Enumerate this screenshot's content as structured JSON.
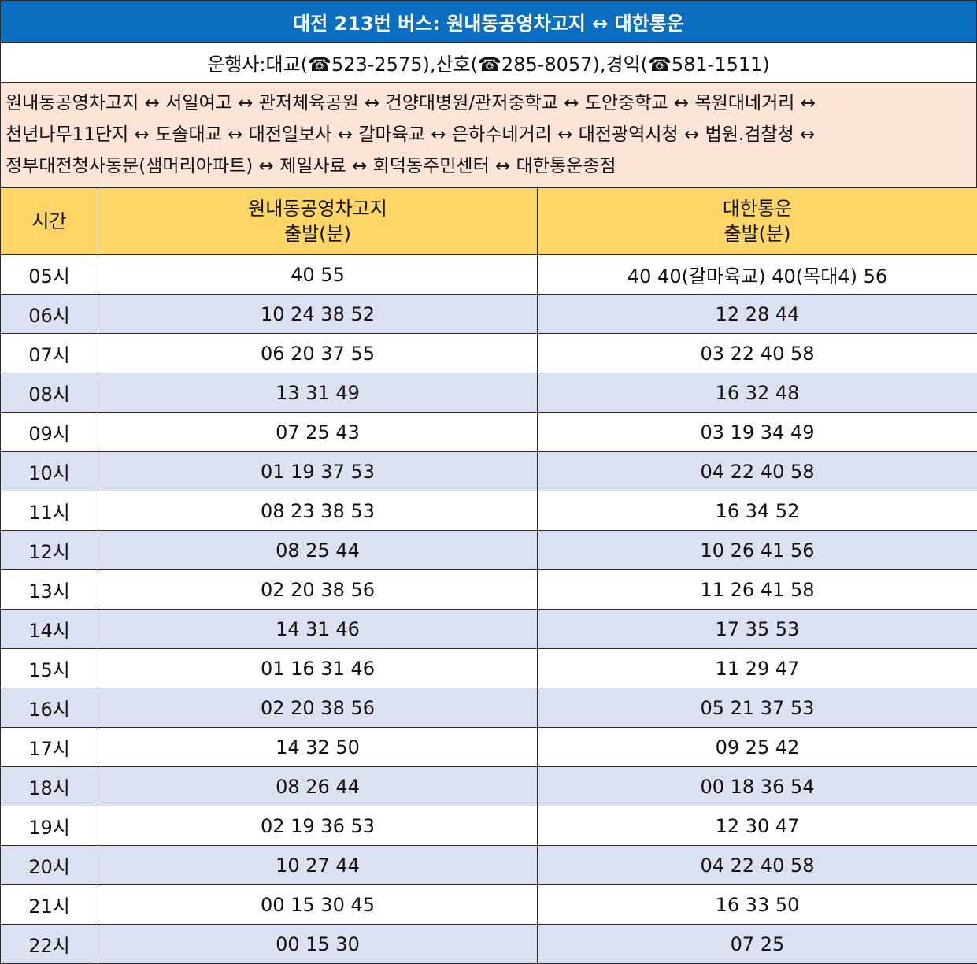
{
  "title": "대전 213번 버스: 원내동공영차고지 ↔ 대한통운",
  "operators": "운행사:대교(☎523-2575),산호(☎285-8057),경익(☎581-1511)",
  "route_lines": [
    "원내동공영차고지 ↔ 서일여고 ↔ 관저체육공원 ↔ 건양대병원/관저중학교 ↔ 도안중학교 ↔ 목원대네거리 ↔",
    "천년나무11단지 ↔ 도솔대교 ↔ 대전일보사 ↔ 갈마육교 ↔ 은하수네거리 ↔ 대전광역시청 ↔ 법원.검찰청 ↔",
    "정부대전청사동문(샘머리아파트) ↔ 제일사료 ↔ 회덕동주민센터 ↔ 대한통운종점"
  ],
  "table": {
    "header": {
      "time": "시간",
      "col1_line1": "원내동공영차고지",
      "col1_line2": "출발(분)",
      "col2_line1": "대한통운",
      "col2_line2": "출발(분)"
    },
    "rows": [
      {
        "hour": "05시",
        "from_wonnae": "40 55",
        "from_daehan": "40 40(갈마육교) 40(목대4) 56"
      },
      {
        "hour": "06시",
        "from_wonnae": "10 24 38 52",
        "from_daehan": "12 28 44"
      },
      {
        "hour": "07시",
        "from_wonnae": "06 20 37 55",
        "from_daehan": "03 22 40 58"
      },
      {
        "hour": "08시",
        "from_wonnae": "13 31 49",
        "from_daehan": "16 32 48"
      },
      {
        "hour": "09시",
        "from_wonnae": "07 25 43",
        "from_daehan": "03 19 34 49"
      },
      {
        "hour": "10시",
        "from_wonnae": "01 19 37 53",
        "from_daehan": "04 22 40 58"
      },
      {
        "hour": "11시",
        "from_wonnae": "08 23 38 53",
        "from_daehan": "16 34 52"
      },
      {
        "hour": "12시",
        "from_wonnae": "08 25 44",
        "from_daehan": "10 26 41 56"
      },
      {
        "hour": "13시",
        "from_wonnae": "02 20 38 56",
        "from_daehan": "11 26 41 58"
      },
      {
        "hour": "14시",
        "from_wonnae": "14 31 46",
        "from_daehan": "17 35 53"
      },
      {
        "hour": "15시",
        "from_wonnae": "01 16 31 46",
        "from_daehan": "11 29 47"
      },
      {
        "hour": "16시",
        "from_wonnae": "02 20 38 56",
        "from_daehan": "05 21 37 53"
      },
      {
        "hour": "17시",
        "from_wonnae": "14 32 50",
        "from_daehan": "09 25 42"
      },
      {
        "hour": "18시",
        "from_wonnae": "08 26 44",
        "from_daehan": "00 18 36 54"
      },
      {
        "hour": "19시",
        "from_wonnae": "02 19 36 53",
        "from_daehan": "12 30 47"
      },
      {
        "hour": "20시",
        "from_wonnae": "10 27 44",
        "from_daehan": "04 22 40 58"
      },
      {
        "hour": "21시",
        "from_wonnae": "00 15 30 45",
        "from_daehan": "16 33 50"
      },
      {
        "hour": "22시",
        "from_wonnae": "00 15 30",
        "from_daehan": "07 25"
      }
    ]
  },
  "colors": {
    "title_bg": "#0b6fc1",
    "route_bg": "#fde4d8",
    "header_bg": "#fdd667",
    "alt_row_bg": "#dce1f1"
  }
}
